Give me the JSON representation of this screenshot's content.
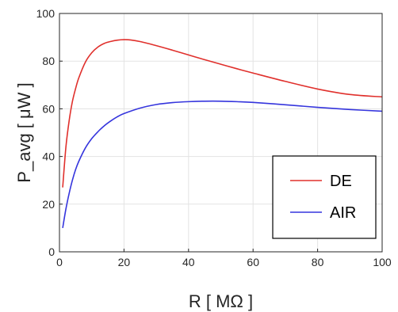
{
  "chart_data": {
    "type": "line",
    "title": "",
    "xlabel": "R [ MΩ ]",
    "ylabel": "P_avg [ μW ]",
    "xlim": [
      0,
      100
    ],
    "ylim": [
      0,
      100
    ],
    "xticks": [
      0,
      20,
      40,
      60,
      80,
      100
    ],
    "yticks": [
      0,
      20,
      40,
      60,
      80,
      100
    ],
    "grid": true,
    "legend_position": "bottom-right",
    "series": [
      {
        "name": "DE",
        "color": "#e0302c",
        "x": [
          1,
          2,
          3,
          4,
          5,
          6,
          8,
          10,
          12,
          14,
          16,
          18,
          20,
          22,
          25,
          30,
          35,
          40,
          45,
          50,
          55,
          60,
          70,
          80,
          90,
          100
        ],
        "y": [
          27,
          44,
          55,
          63,
          68.5,
          73,
          79.5,
          83.5,
          86,
          87.5,
          88.3,
          88.8,
          89,
          88.9,
          88.2,
          86.5,
          84.6,
          82.6,
          80.6,
          78.7,
          76.8,
          75,
          71.5,
          68.3,
          66,
          65
        ]
      },
      {
        "name": "AIR",
        "color": "#3535dd",
        "x": [
          1,
          2,
          3,
          4,
          5,
          6,
          8,
          10,
          12,
          14,
          16,
          18,
          20,
          25,
          30,
          35,
          40,
          45,
          50,
          55,
          60,
          70,
          80,
          90,
          100
        ],
        "y": [
          10,
          18,
          24.5,
          30,
          34.5,
          38,
          43.5,
          47.5,
          50.5,
          53,
          55,
          56.7,
          58,
          60.3,
          61.8,
          62.6,
          63,
          63.2,
          63.2,
          63,
          62.7,
          61.7,
          60.6,
          59.7,
          59
        ]
      }
    ]
  }
}
